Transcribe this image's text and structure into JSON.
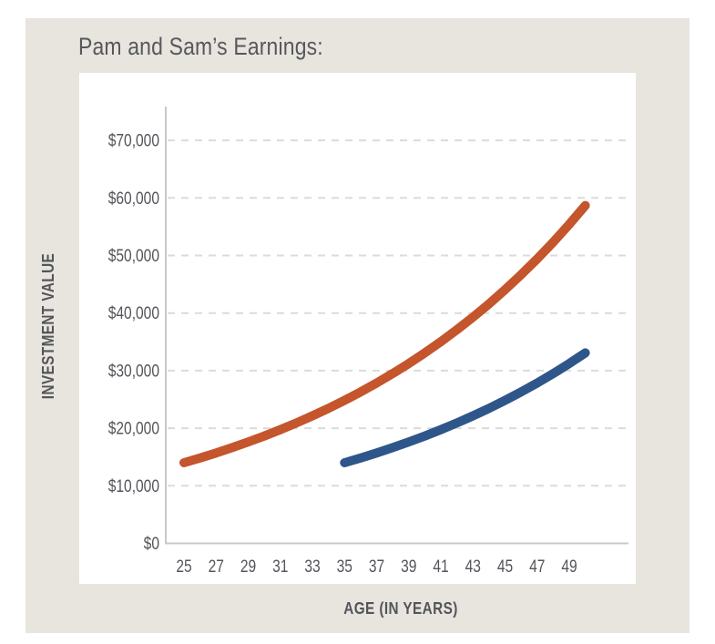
{
  "title": "Pam and Sam’s Earnings:",
  "colors": {
    "page_background": "#ffffff",
    "card_background": "#e8e5df",
    "panel_background": "#ffffff",
    "title_text": "#57585b",
    "axis_text": "#54555a",
    "axis_line": "#c8c8c6",
    "gridline": "#dbdbdb",
    "pam_line": "#c4552c",
    "sam_line": "#2f568a"
  },
  "chart_data": {
    "type": "line",
    "title": "Pam and Sam’s Earnings:",
    "xlabel": "AGE (IN YEARS)",
    "ylabel": "INVESTMENT VALUE",
    "x_tick_labels": [
      "25",
      "27",
      "29",
      "31",
      "33",
      "35",
      "37",
      "39",
      "41",
      "43",
      "45",
      "47",
      "49"
    ],
    "x_tick_values": [
      25,
      27,
      29,
      31,
      33,
      35,
      37,
      39,
      41,
      43,
      45,
      47,
      49
    ],
    "y_tick_labels": [
      "$0",
      "$10,000",
      "$20,000",
      "$30,000",
      "$40,000",
      "$50,000",
      "$60,000",
      "$70,000"
    ],
    "y_tick_values": [
      0,
      10000,
      20000,
      30000,
      40000,
      50000,
      60000,
      70000
    ],
    "xlim": [
      23.9,
      52.9
    ],
    "ylim": [
      0,
      75800
    ],
    "grid": "horizontal-dashed",
    "legend": "none",
    "series": [
      {
        "name": "Pam",
        "color": "#c4552c",
        "x": [
          25,
          26,
          27,
          28,
          29,
          30,
          31,
          32,
          33,
          34,
          35,
          36,
          37,
          38,
          39,
          40,
          41,
          42,
          43,
          44,
          45,
          46,
          47,
          48,
          49,
          50
        ],
        "values": [
          14000,
          14826,
          15701,
          16627,
          17608,
          18647,
          19747,
          20912,
          22146,
          23453,
          24836,
          26302,
          27853,
          29497,
          31237,
          33080,
          35032,
          37099,
          39288,
          41606,
          44060,
          46660,
          49413,
          52328,
          55415,
          58685
        ]
      },
      {
        "name": "Sam",
        "color": "#2f568a",
        "x": [
          35,
          36,
          37,
          38,
          39,
          40,
          41,
          42,
          43,
          44,
          45,
          46,
          47,
          48,
          49,
          50
        ],
        "values": [
          14000,
          14826,
          15701,
          16627,
          17608,
          18647,
          19747,
          20912,
          22146,
          23453,
          24836,
          26302,
          27853,
          29497,
          31237,
          33080
        ]
      }
    ]
  }
}
